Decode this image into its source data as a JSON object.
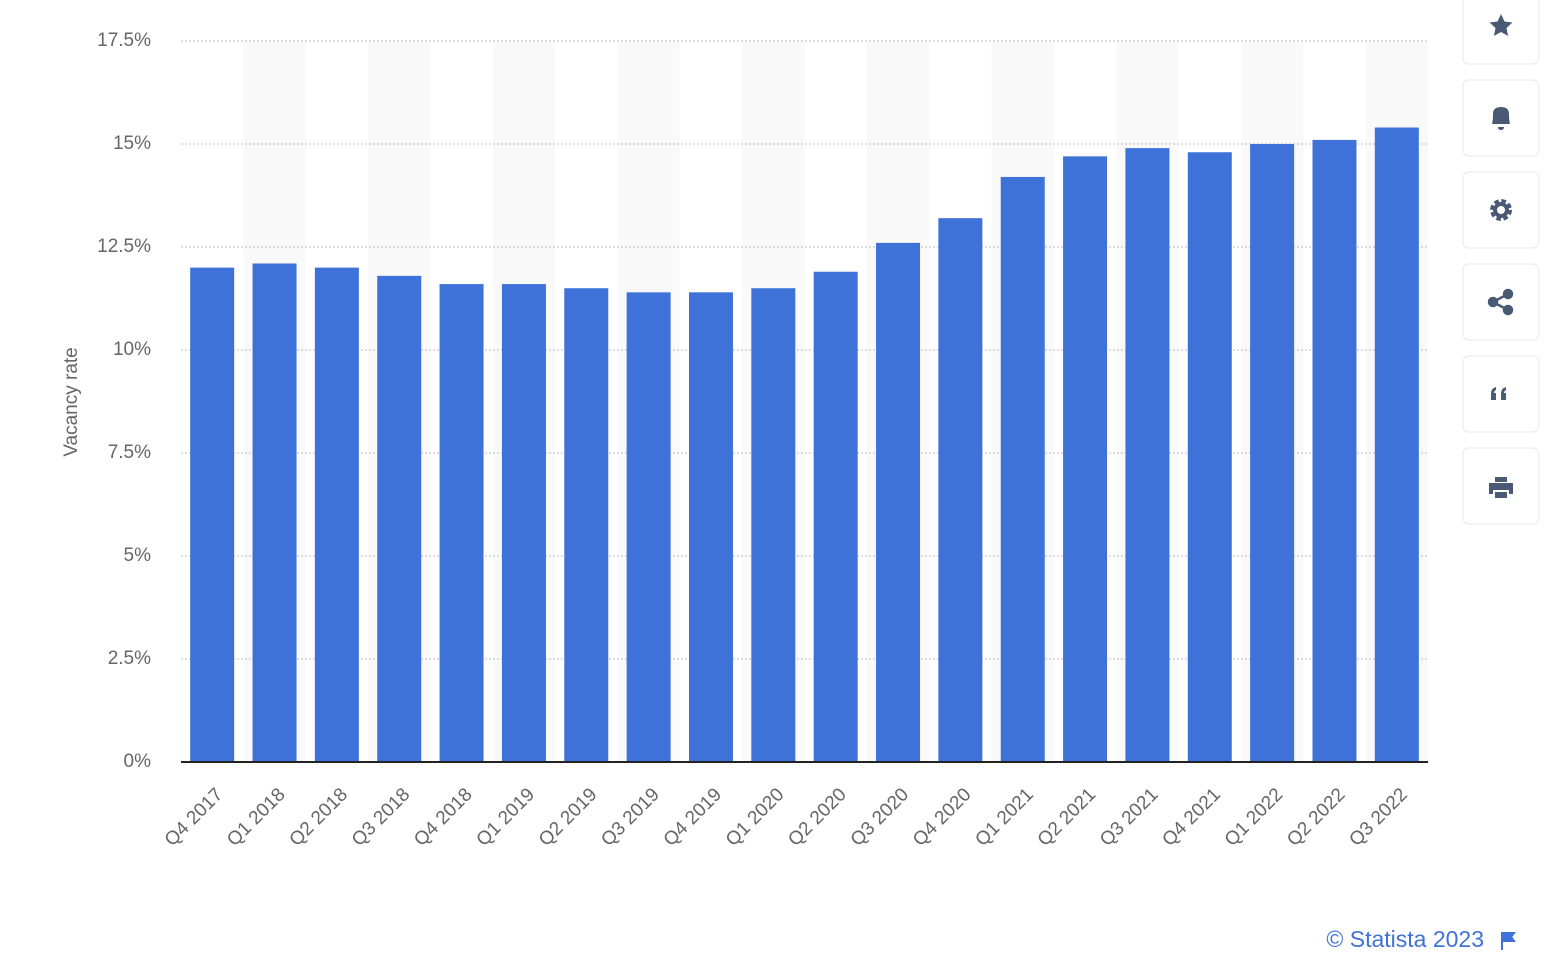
{
  "chart_data": {
    "type": "bar",
    "y_label": "Vacancy rate",
    "categories": [
      "Q4 2017",
      "Q1 2018",
      "Q2 2018",
      "Q3 2018",
      "Q4 2018",
      "Q1 2019",
      "Q2 2019",
      "Q3 2019",
      "Q4 2019",
      "Q1 2020",
      "Q2 2020",
      "Q3 2020",
      "Q4 2020",
      "Q1 2021",
      "Q2 2021",
      "Q3 2021",
      "Q4 2021",
      "Q1 2022",
      "Q2 2022",
      "Q3 2022"
    ],
    "values": [
      12.0,
      12.1,
      12.0,
      11.8,
      11.6,
      11.6,
      11.5,
      11.4,
      11.4,
      11.5,
      11.9,
      12.6,
      13.2,
      14.2,
      14.7,
      14.9,
      14.8,
      15.0,
      15.1,
      15.4
    ],
    "color": "#3f72d8",
    "ylim": [
      0,
      17.5
    ],
    "yticks": [
      {
        "value": 0,
        "label": "0%"
      },
      {
        "value": 2.5,
        "label": "2.5%"
      },
      {
        "value": 5,
        "label": "5%"
      },
      {
        "value": 7.5,
        "label": "7.5%"
      },
      {
        "value": 10,
        "label": "10%"
      },
      {
        "value": 12.5,
        "label": "12.5%"
      },
      {
        "value": 15,
        "label": "15%"
      },
      {
        "value": 17.5,
        "label": "17.5%"
      }
    ],
    "grid": true,
    "credit": "© Statista 2023"
  }
}
